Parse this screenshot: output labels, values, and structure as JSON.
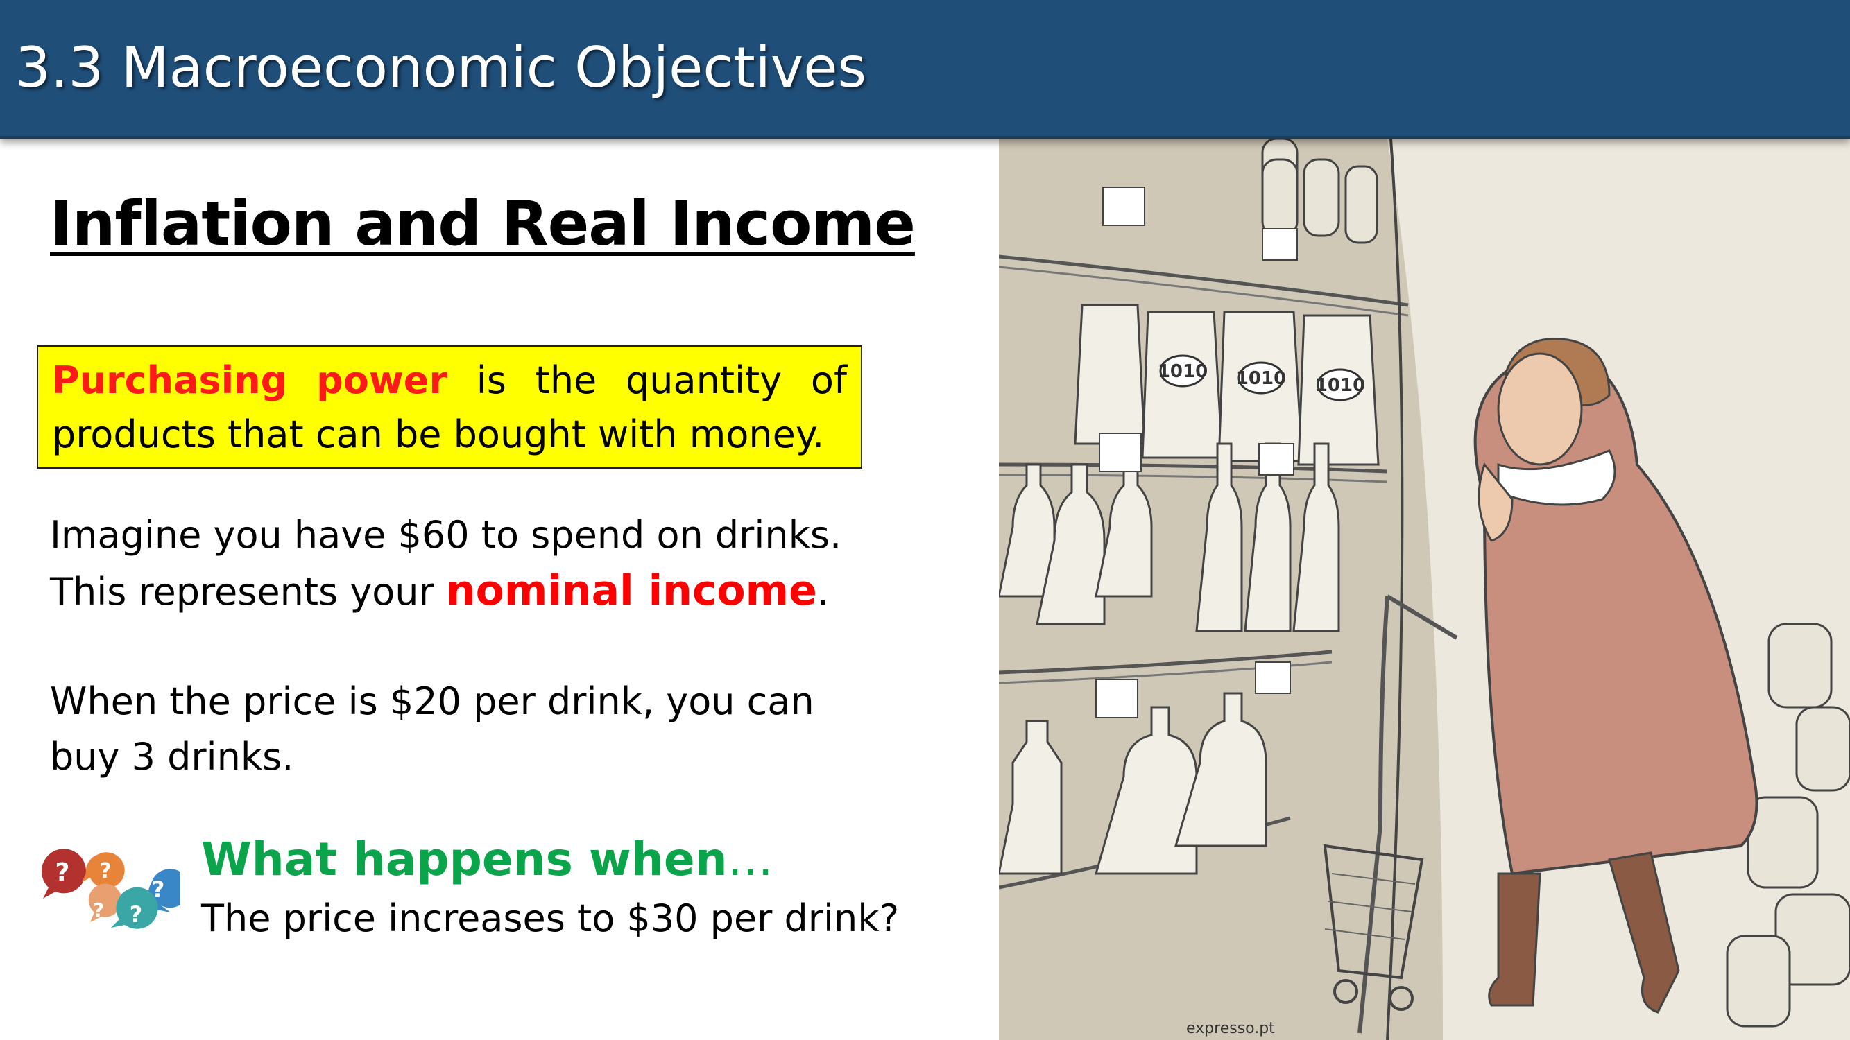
{
  "header": {
    "title": "3.3 Macroeconomic Objectives",
    "background": "#1f4e79"
  },
  "main": {
    "heading": "Inflation and Real Income",
    "definition": {
      "term_word1": "Purchasing",
      "term_word2": "power",
      "rest_words": [
        "is",
        "the",
        "quantity",
        "of"
      ],
      "line2": "products that can be bought with money.",
      "box_color": "#ffff00",
      "term_color": "#ff1a1a"
    },
    "paragraph1": {
      "line1": "Imagine you have $60 to spend on drinks.",
      "line2_prefix": "This represents your ",
      "highlight": "nominal income",
      "line2_suffix": "."
    },
    "paragraph2": {
      "line1": "When the price is $20 per drink, you can",
      "line2": "buy 3 drinks."
    },
    "prompt": {
      "icon": "question-bubbles-icon",
      "heading": "What happens when",
      "ellipsis": "…",
      "question": "The price increases to $30 per drink?",
      "heading_color": "#0aa54a"
    }
  },
  "cartoon": {
    "description_icon": "shopper-cartoon-illustration",
    "bag_label": "1010",
    "signature": "expresso.pt"
  }
}
